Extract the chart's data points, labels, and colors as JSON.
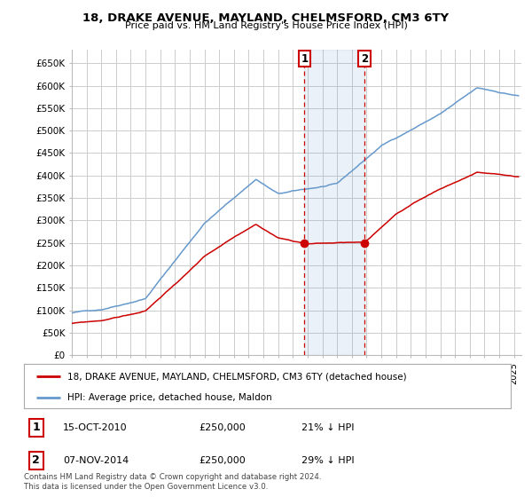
{
  "title": "18, DRAKE AVENUE, MAYLAND, CHELMSFORD, CM3 6TY",
  "subtitle": "Price paid vs. HM Land Registry's House Price Index (HPI)",
  "ylabel_ticks": [
    "£0",
    "£50K",
    "£100K",
    "£150K",
    "£200K",
    "£250K",
    "£300K",
    "£350K",
    "£400K",
    "£450K",
    "£500K",
    "£550K",
    "£600K",
    "£650K"
  ],
  "ytick_values": [
    0,
    50000,
    100000,
    150000,
    200000,
    250000,
    300000,
    350000,
    400000,
    450000,
    500000,
    550000,
    600000,
    650000
  ],
  "ylim": [
    0,
    680000
  ],
  "xlim_start": 1995.0,
  "xlim_end": 2025.5,
  "red_color": "#cc0000",
  "blue_color": "#6699cc",
  "bg_color": "#ffffff",
  "grid_color": "#cccccc",
  "transaction1": {
    "label": "1",
    "date": "15-OCT-2010",
    "price": "£250,000",
    "hpi_note": "21% ↓ HPI",
    "x": 2010.79
  },
  "transaction2": {
    "label": "2",
    "date": "07-NOV-2014",
    "price": "£250,000",
    "hpi_note": "29% ↓ HPI",
    "x": 2014.85
  },
  "legend_red": "18, DRAKE AVENUE, MAYLAND, CHELMSFORD, CM3 6TY (detached house)",
  "legend_blue": "HPI: Average price, detached house, Maldon",
  "footer": "Contains HM Land Registry data © Crown copyright and database right 2024.\nThis data is licensed under the Open Government Licence v3.0.",
  "transaction1_y": 250000,
  "transaction2_y": 250000,
  "hpi_seed": 42,
  "red_seed": 123
}
